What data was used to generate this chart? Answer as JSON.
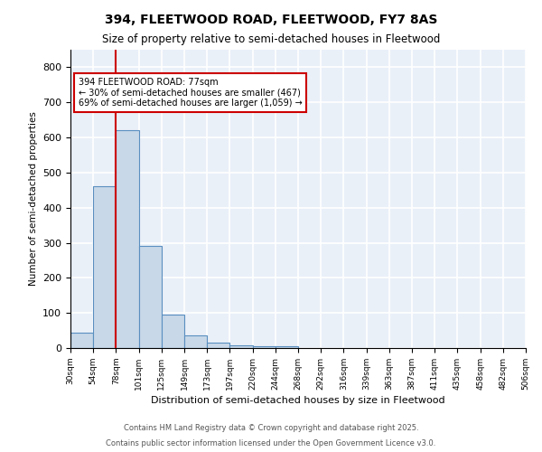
{
  "title1": "394, FLEETWOOD ROAD, FLEETWOOD, FY7 8AS",
  "title2": "Size of property relative to semi-detached houses in Fleetwood",
  "xlabel": "Distribution of semi-detached houses by size in Fleetwood",
  "ylabel": "Number of semi-detached properties",
  "bin_labels": [
    "30sqm",
    "54sqm",
    "78sqm",
    "101sqm",
    "125sqm",
    "149sqm",
    "173sqm",
    "197sqm",
    "220sqm",
    "244sqm",
    "268sqm",
    "292sqm",
    "316sqm",
    "339sqm",
    "363sqm",
    "387sqm",
    "411sqm",
    "435sqm",
    "458sqm",
    "482sqm",
    "506sqm"
  ],
  "bar_heights": [
    45,
    460,
    620,
    290,
    95,
    35,
    15,
    8,
    5,
    5,
    0,
    0,
    0,
    0,
    0,
    0,
    0,
    0,
    0,
    0
  ],
  "bar_color": "#c8d8e8",
  "bar_edge_color": "#5a8fc0",
  "background_color": "#eaf0f8",
  "grid_color": "#ffffff",
  "property_label": "394 FLEETWOOD ROAD: 77sqm",
  "pct_smaller": 30,
  "pct_larger": 69,
  "count_smaller": 467,
  "count_larger": 1059,
  "red_line_color": "#cc0000",
  "annotation_box_color": "#ffffff",
  "annotation_box_edge": "#cc0000",
  "ylim": [
    0,
    850
  ],
  "yticks": [
    0,
    100,
    200,
    300,
    400,
    500,
    600,
    700,
    800
  ],
  "footer1": "Contains HM Land Registry data © Crown copyright and database right 2025.",
  "footer2": "Contains public sector information licensed under the Open Government Licence v3.0."
}
